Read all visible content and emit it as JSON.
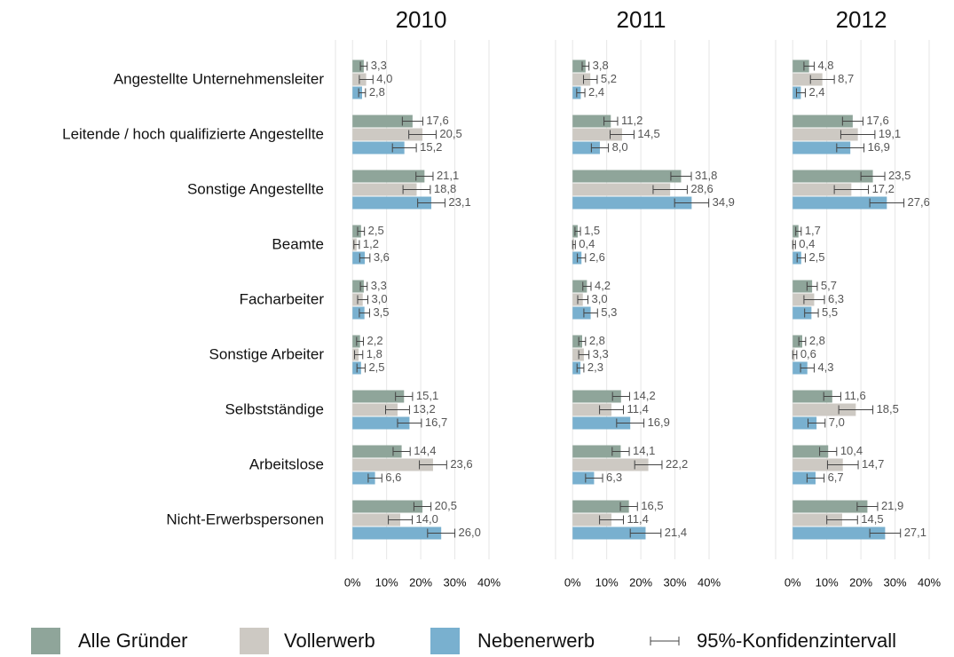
{
  "chart_data": {
    "type": "bar",
    "categories": [
      "Angestellte Unternehmensleiter",
      "Leitende / hoch qualifizierte Angestellte",
      "Sonstige Angestellte",
      "Beamte",
      "Facharbeiter",
      "Sonstige Arbeiter",
      "Selbstständige",
      "Arbeitslose",
      "Nicht-Erwerbspersonen"
    ],
    "series": [
      {
        "name": "Alle Gründer",
        "color": "#8fa59a"
      },
      {
        "name": "Vollerwerb",
        "color": "#cdc9c3"
      },
      {
        "name": "Nebenerwerb",
        "color": "#79b0cf"
      }
    ],
    "error_bar_label": "95%-Konfidenzintervall",
    "xlim": [
      -5,
      40
    ],
    "xticks": [
      {
        "value": 0,
        "label": "0%"
      },
      {
        "value": 10,
        "label": "10%"
      },
      {
        "value": 20,
        "label": "20%"
      },
      {
        "value": 30,
        "label": "30%"
      },
      {
        "value": 40,
        "label": "40%"
      }
    ],
    "grid": true,
    "panels": [
      {
        "title": "2010",
        "series": [
          {
            "values": [
              3.3,
              17.6,
              21.1,
              2.5,
              3.3,
              2.2,
              15.1,
              14.4,
              20.5
            ],
            "errors": [
              1,
              3,
              2.5,
              1,
              1,
              1,
              2.5,
              2.5,
              2.5
            ],
            "value_labels": [
              "3,3",
              "17,6",
              "21,1",
              "2,5",
              "3,3",
              "2,2",
              "15,1",
              "14,4",
              "20,5"
            ]
          },
          {
            "values": [
              4.0,
              20.5,
              18.8,
              1.2,
              3.0,
              1.8,
              13.2,
              23.6,
              14.0
            ],
            "errors": [
              2,
              4,
              4,
              0.8,
              1.5,
              1.2,
              3.5,
              4,
              3.5
            ],
            "value_labels": [
              "4,0",
              "20,5",
              "18,8",
              "1,2",
              "3,0",
              "1,8",
              "13,2",
              "23,6",
              "14,0"
            ]
          },
          {
            "values": [
              2.8,
              15.2,
              23.1,
              3.6,
              3.5,
              2.5,
              16.7,
              6.6,
              26.0
            ],
            "errors": [
              1,
              3.5,
              4,
              1.5,
              1.5,
              1.2,
              3.5,
              2,
              4
            ],
            "value_labels": [
              "2,8",
              "15,2",
              "23,1",
              "3,6",
              "3,5",
              "2,5",
              "16,7",
              "6,6",
              "26,0"
            ]
          }
        ]
      },
      {
        "title": "2011",
        "series": [
          {
            "values": [
              3.8,
              11.2,
              31.8,
              1.5,
              4.2,
              2.8,
              14.2,
              14.1,
              16.5
            ],
            "errors": [
              1,
              2,
              3,
              0.8,
              1.2,
              1,
              2.5,
              2.5,
              2.5
            ],
            "value_labels": [
              "3,8",
              "11,2",
              "31,8",
              "1,5",
              "4,2",
              "2,8",
              "14,2",
              "14,1",
              "16,5"
            ]
          },
          {
            "values": [
              5.2,
              14.5,
              28.6,
              0.4,
              3.0,
              3.3,
              11.4,
              22.2,
              11.4
            ],
            "errors": [
              2,
              3.5,
              5,
              0.4,
              1.5,
              1.5,
              3.5,
              4,
              3.5
            ],
            "value_labels": [
              "5,2",
              "14,5",
              "28,6",
              "0,4",
              "3,0",
              "3,3",
              "11,4",
              "22,2",
              "11,4"
            ]
          },
          {
            "values": [
              2.4,
              8.0,
              34.9,
              2.6,
              5.3,
              2.3,
              16.9,
              6.3,
              21.4
            ],
            "errors": [
              1.2,
              2.5,
              5,
              1.2,
              2,
              1,
              4,
              2.5,
              4.5
            ],
            "value_labels": [
              "2,4",
              "8,0",
              "34,9",
              "2,6",
              "5,3",
              "2,3",
              "16,9",
              "6,3",
              "21,4"
            ]
          }
        ]
      },
      {
        "title": "2012",
        "series": [
          {
            "values": [
              4.8,
              17.6,
              23.5,
              1.7,
              5.7,
              2.8,
              11.6,
              10.4,
              21.9
            ],
            "errors": [
              1.5,
              3,
              3.5,
              0.8,
              1.5,
              1,
              2.5,
              2.5,
              3
            ],
            "value_labels": [
              "4,8",
              "17,6",
              "23,5",
              "1,7",
              "5,7",
              "2,8",
              "11,6",
              "10,4",
              "21,9"
            ]
          },
          {
            "values": [
              8.7,
              19.1,
              17.2,
              0.4,
              6.3,
              0.6,
              18.5,
              14.7,
              14.5
            ],
            "errors": [
              3.5,
              5,
              5,
              0.4,
              3,
              0.6,
              5,
              4.5,
              4.5
            ],
            "value_labels": [
              "8,7",
              "19,1",
              "17,2",
              "0,4",
              "6,3",
              "0,6",
              "18,5",
              "14,7",
              "14,5"
            ]
          },
          {
            "values": [
              2.4,
              16.9,
              27.6,
              2.5,
              5.5,
              4.3,
              7.0,
              6.7,
              27.1
            ],
            "errors": [
              1.3,
              4,
              5,
              1.2,
              2,
              2,
              2.5,
              2.5,
              4.5
            ],
            "value_labels": [
              "2,4",
              "16,9",
              "27,6",
              "2,5",
              "5,5",
              "4,3",
              "7,0",
              "6,7",
              "27,1"
            ]
          }
        ]
      }
    ]
  }
}
